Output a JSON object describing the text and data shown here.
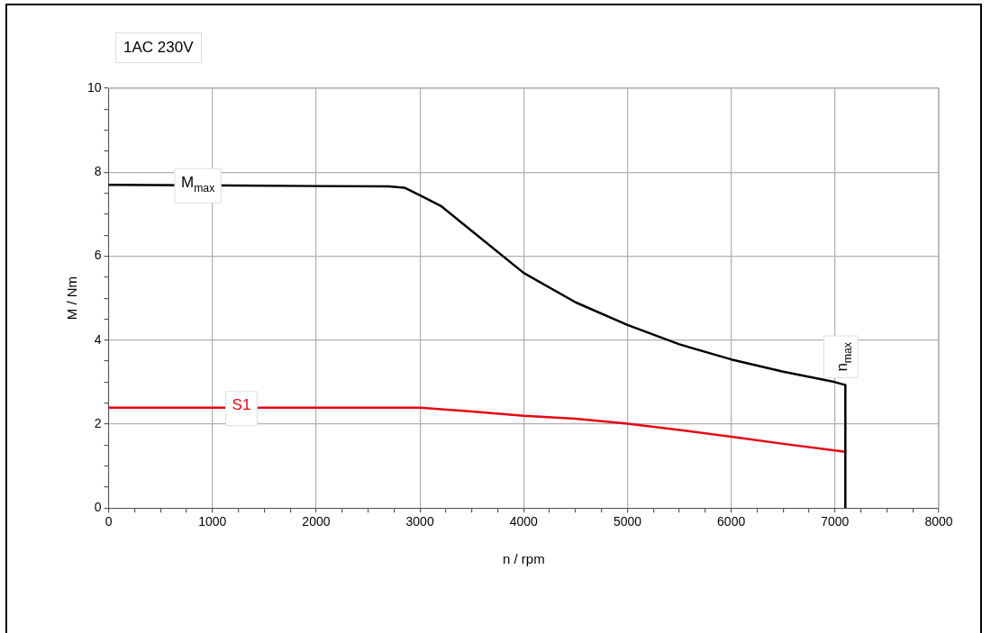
{
  "chart_data": {
    "type": "line",
    "title": "1AC 230V",
    "xlabel": "n / rpm",
    "ylabel": "M / Nm",
    "xlim": [
      0,
      8000
    ],
    "ylim": [
      0,
      10
    ],
    "xticks": [
      0,
      {
        "value": 250,
        "label": null
      },
      {
        "value": 500,
        "label": null
      },
      {
        "value": 750,
        "label": null
      },
      1000,
      {
        "value": 1250,
        "label": null
      },
      {
        "value": 1500,
        "label": null
      },
      {
        "value": 1750,
        "label": null
      },
      2000,
      {
        "value": 2250,
        "label": null
      },
      {
        "value": 2500,
        "label": null
      },
      {
        "value": 2750,
        "label": null
      },
      3000,
      {
        "value": 3250,
        "label": null
      },
      {
        "value": 3500,
        "label": null
      },
      {
        "value": 3750,
        "label": null
      },
      4000,
      {
        "value": 4250,
        "label": null
      },
      {
        "value": 4500,
        "label": null
      },
      {
        "value": 4750,
        "label": null
      },
      5000,
      {
        "value": 5250,
        "label": null
      },
      {
        "value": 5500,
        "label": null
      },
      {
        "value": 5750,
        "label": null
      },
      6000,
      {
        "value": 6250,
        "label": null
      },
      {
        "value": 6500,
        "label": null
      },
      {
        "value": 6750,
        "label": null
      },
      7000,
      {
        "value": 7250,
        "label": null
      },
      {
        "value": 7500,
        "label": null
      },
      {
        "value": 7750,
        "label": null
      },
      8000
    ],
    "yticks": [
      0,
      {
        "value": 0.5,
        "label": null
      },
      {
        "value": 1,
        "label": null
      },
      {
        "value": 1.5,
        "label": null
      },
      2,
      {
        "value": 2.5,
        "label": null
      },
      {
        "value": 3,
        "label": null
      },
      {
        "value": 3.5,
        "label": null
      },
      4,
      {
        "value": 4.5,
        "label": null
      },
      {
        "value": 5,
        "label": null
      },
      {
        "value": 5.5,
        "label": null
      },
      6,
      {
        "value": 6.5,
        "label": null
      },
      {
        "value": 7,
        "label": null
      },
      {
        "value": 7.5,
        "label": null
      },
      8,
      {
        "value": 8.5,
        "label": null
      },
      {
        "value": 9,
        "label": null
      },
      {
        "value": 9.5,
        "label": null
      },
      10
    ],
    "grid": true,
    "legend": false,
    "marker": "none",
    "line_style": "solid",
    "series": [
      {
        "color": "#000000",
        "x": [
          0,
          2000,
          2700,
          2850,
          3000,
          3200,
          3500,
          4000,
          4500,
          5000,
          5500,
          6000,
          6500,
          7000,
          7100,
          7100
        ],
        "values": [
          7.7,
          7.67,
          7.66,
          7.63,
          7.45,
          7.2,
          6.6,
          5.6,
          4.9,
          4.36,
          3.9,
          3.54,
          3.25,
          3.0,
          2.93,
          0
        ]
      },
      {
        "color": "#e30613",
        "x": [
          0,
          2000,
          3000,
          3500,
          4000,
          4500,
          5000,
          5500,
          6000,
          6500,
          7100
        ],
        "values": [
          2.39,
          2.39,
          2.39,
          2.3,
          2.2,
          2.13,
          2.01,
          1.86,
          1.7,
          1.53,
          1.34
        ]
      }
    ],
    "annotations": [
      {
        "text": "M$_{max}$",
        "x": 860,
        "y": 7.7
      },
      {
        "text": "S1",
        "x": 1280,
        "y": 2.39
      },
      {
        "text": "n$_{max}$",
        "x": 7100,
        "y": 2.93
      }
    ]
  }
}
